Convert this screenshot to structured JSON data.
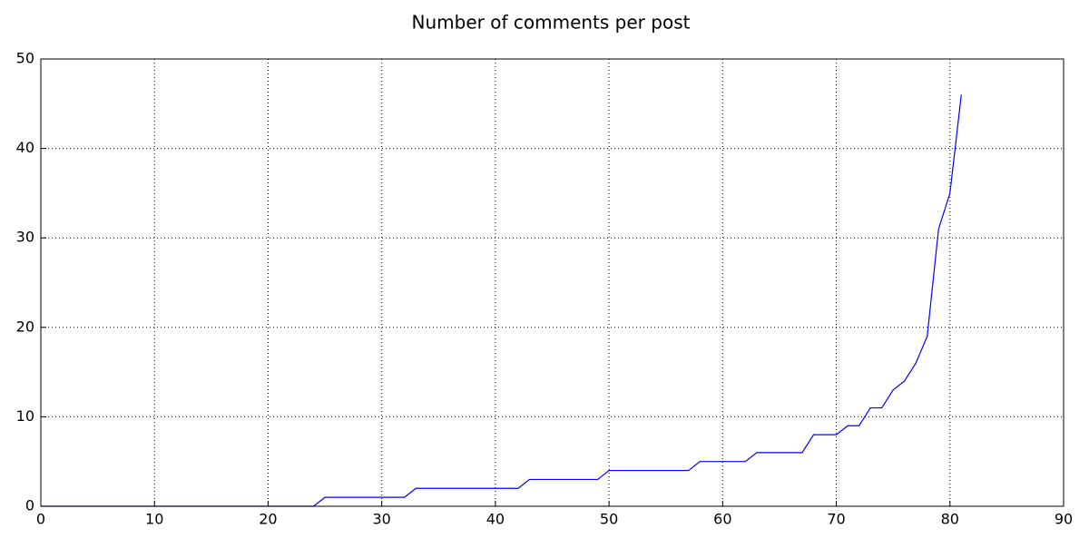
{
  "chart_data": {
    "type": "line",
    "title": "Number of comments per post",
    "x": [
      0,
      1,
      2,
      3,
      4,
      5,
      6,
      7,
      8,
      9,
      10,
      11,
      12,
      13,
      14,
      15,
      16,
      17,
      18,
      19,
      20,
      21,
      22,
      23,
      24,
      25,
      26,
      27,
      28,
      29,
      30,
      31,
      32,
      33,
      34,
      35,
      36,
      37,
      38,
      39,
      40,
      41,
      42,
      43,
      44,
      45,
      46,
      47,
      48,
      49,
      50,
      51,
      52,
      53,
      54,
      55,
      56,
      57,
      58,
      59,
      60,
      61,
      62,
      63,
      64,
      65,
      66,
      67,
      68,
      69,
      70,
      71,
      72,
      73,
      74,
      75,
      76,
      77,
      78,
      79,
      80,
      81
    ],
    "series": [
      {
        "color": "#0000ff",
        "values": [
          0,
          0,
          0,
          0,
          0,
          0,
          0,
          0,
          0,
          0,
          0,
          0,
          0,
          0,
          0,
          0,
          0,
          0,
          0,
          0,
          0,
          0,
          0,
          0,
          0,
          1,
          1,
          1,
          1,
          1,
          1,
          1,
          1,
          2,
          2,
          2,
          2,
          2,
          2,
          2,
          2,
          2,
          2,
          3,
          3,
          3,
          3,
          3,
          3,
          3,
          4,
          4,
          4,
          4,
          4,
          4,
          4,
          4,
          5,
          5,
          5,
          5,
          5,
          6,
          6,
          6,
          6,
          6,
          8,
          8,
          8,
          9,
          9,
          11,
          11,
          13,
          14,
          16,
          19,
          31,
          35,
          46
        ]
      }
    ],
    "xlim": [
      0,
      90
    ],
    "xticks": [
      0,
      10,
      20,
      30,
      40,
      50,
      60,
      70,
      80,
      90
    ],
    "ylim": [
      0,
      50
    ],
    "yticks": [
      0,
      10,
      20,
      30,
      40,
      50
    ],
    "grid": true
  }
}
